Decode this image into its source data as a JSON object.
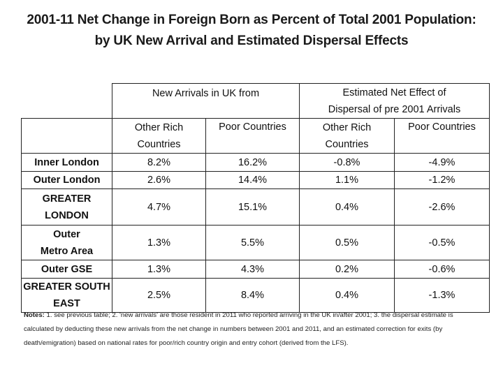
{
  "title": {
    "line1": "2001-11 Net Change in Foreign Born as Percent of Total 2001 Population:",
    "line2": "by UK New Arrival and Estimated Dispersal Effects"
  },
  "table": {
    "group_headers": {
      "new_arrivals": "New  Arrivals  in UK from",
      "dispersal": "Estimated Net Effect of Dispersal of pre 2001 Arrivals"
    },
    "sub_headers": [
      "Other Rich Countries",
      "Poor Countries",
      "Other Rich Countries",
      "Poor Countries"
    ],
    "rows": [
      {
        "label": "Inner London",
        "values": [
          "8.2%",
          "16.2%",
          "-0.8%",
          "-4.9%"
        ]
      },
      {
        "label": "Outer London",
        "values": [
          "2.6%",
          "14.4%",
          "1.1%",
          "-1.2%"
        ]
      },
      {
        "label": "GREATER LONDON",
        "values": [
          "4.7%",
          "15.1%",
          "0.4%",
          "-2.6%"
        ]
      },
      {
        "label": "Outer Metro Area",
        "values": [
          "1.3%",
          "5.5%",
          "0.5%",
          "-0.5%"
        ]
      },
      {
        "label": "Outer GSE",
        "values": [
          "1.3%",
          "4.3%",
          "0.2%",
          "-0.6%"
        ]
      },
      {
        "label": "GREATER SOUTH EAST",
        "values": [
          "2.5%",
          "8.4%",
          "0.4%",
          "-1.3%"
        ]
      }
    ]
  },
  "notes": {
    "label": "Notes:",
    "text": " 1.  see previous table; 2. 'new arrivals' are those resident in 2011 who reported arriving in the UK in/after 2001; 3. the dispersal estimate is calculated by deducting these new arrivals from the net change in numbers between 2001 and 2011, and an estimated correction for exits (by death/emigration) based on national rates for poor/rich country origin and entry cohort (derived from the LFS)."
  }
}
